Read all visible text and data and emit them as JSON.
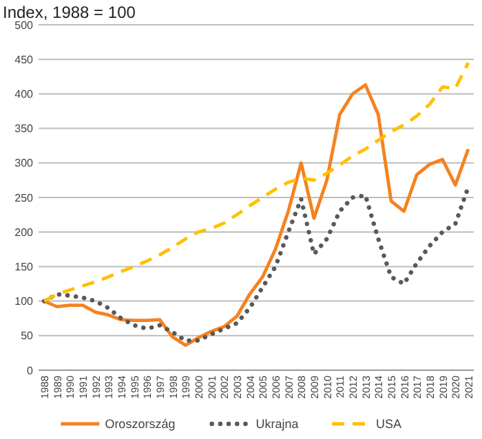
{
  "chart_data": {
    "type": "line",
    "title": "Index, 1988 = 100",
    "categories": [
      "1988",
      "1989",
      "1990",
      "1991",
      "1992",
      "1993",
      "1994",
      "1995",
      "1996",
      "1997",
      "1998",
      "1999",
      "2000",
      "2001",
      "2002",
      "2003",
      "2004",
      "2005",
      "2006",
      "2007",
      "2008",
      "2009",
      "2010",
      "2011",
      "2012",
      "2013",
      "2014",
      "2015",
      "2016",
      "2017",
      "2018",
      "2019",
      "2020",
      "2021"
    ],
    "series": [
      {
        "name": "Oroszország",
        "color": "#f58220",
        "line_style": "solid",
        "values": [
          100,
          92,
          94,
          94,
          84,
          80,
          73,
          72,
          72,
          73,
          48,
          36,
          47,
          56,
          63,
          78,
          110,
          135,
          175,
          230,
          300,
          220,
          275,
          370,
          400,
          413,
          370,
          245,
          230,
          283,
          298,
          305,
          268,
          320
        ]
      },
      {
        "name": "Ukrajna",
        "color": "#595959",
        "line_style": "dotted",
        "values": [
          100,
          110,
          108,
          105,
          100,
          90,
          75,
          65,
          60,
          65,
          55,
          43,
          43,
          52,
          60,
          68,
          90,
          120,
          150,
          200,
          248,
          168,
          190,
          230,
          250,
          253,
          190,
          135,
          125,
          155,
          180,
          200,
          212,
          265
        ]
      },
      {
        "name": "USA",
        "color": "#ffc000",
        "line_style": "dashed",
        "values": [
          100,
          110,
          116,
          122,
          128,
          135,
          143,
          150,
          158,
          167,
          178,
          190,
          200,
          205,
          213,
          225,
          238,
          250,
          262,
          272,
          278,
          275,
          285,
          297,
          310,
          320,
          333,
          345,
          355,
          368,
          385,
          410,
          408,
          445
        ]
      }
    ],
    "ylim": [
      0,
      500
    ],
    "yticks": [
      0,
      50,
      100,
      150,
      200,
      250,
      300,
      350,
      400,
      450,
      500
    ],
    "grid": "y",
    "legend": "bottom"
  }
}
